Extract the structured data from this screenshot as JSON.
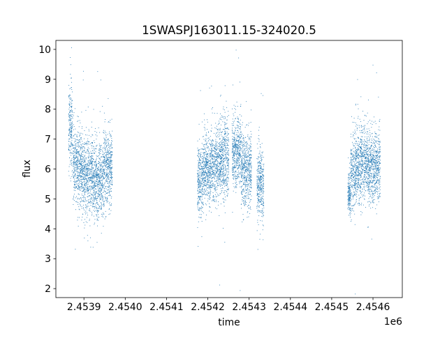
{
  "chart_data": {
    "type": "scatter",
    "title": "1SWASPJ163011.15-324020.5",
    "xlabel": "time",
    "ylabel": "flux",
    "x_offset_label": "1e6",
    "xlim": [
      2453832,
      2454671
    ],
    "ylim": [
      1.7,
      10.3
    ],
    "x_ticks": [
      2453900,
      2454000,
      2454100,
      2454200,
      2454300,
      2454400,
      2454500,
      2454600
    ],
    "x_tick_labels": [
      "2.4539",
      "2.4540",
      "2.4541",
      "2.4542",
      "2.4543",
      "2.4544",
      "2.4545",
      "2.4546"
    ],
    "y_ticks": [
      2,
      3,
      4,
      5,
      6,
      7,
      8,
      9,
      10
    ],
    "y_tick_labels": [
      "2",
      "3",
      "4",
      "5",
      "6",
      "7",
      "8",
      "9",
      "10"
    ],
    "grid": false,
    "series": [
      {
        "color": "#1f77b4",
        "marker": "point",
        "segments": [
          {
            "x_range": [
              2453862,
              2453872
            ],
            "center": 7.4,
            "spread": 0.7
          },
          {
            "x_range": [
              2453873,
              2453893
            ],
            "center": 6.1,
            "spread": 0.6
          },
          {
            "x_range": [
              2453893,
              2453920
            ],
            "center": 5.8,
            "spread": 0.65
          },
          {
            "x_range": [
              2453920,
              2453948
            ],
            "center": 5.6,
            "spread": 0.65
          },
          {
            "x_range": [
              2453948,
              2453968
            ],
            "center": 6.1,
            "spread": 0.6
          },
          {
            "x_range": [
              2454174,
              2454186
            ],
            "center": 5.6,
            "spread": 0.6
          },
          {
            "x_range": [
              2454186,
              2454206
            ],
            "center": 6.0,
            "spread": 0.55
          },
          {
            "x_range": [
              2454206,
              2454235
            ],
            "center": 6.2,
            "spread": 0.6
          },
          {
            "x_range": [
              2454235,
              2454250
            ],
            "center": 6.4,
            "spread": 0.7
          },
          {
            "x_range": [
              2454258,
              2454280
            ],
            "center": 6.6,
            "spread": 0.6
          },
          {
            "x_range": [
              2454280,
              2454305
            ],
            "center": 6.0,
            "spread": 0.6
          },
          {
            "x_range": [
              2454318,
              2454335
            ],
            "center": 5.5,
            "spread": 0.6
          },
          {
            "x_range": [
              2454538,
              2454545
            ],
            "center": 5.2,
            "spread": 0.35
          },
          {
            "x_range": [
              2454545,
              2454560
            ],
            "center": 5.9,
            "spread": 0.6
          },
          {
            "x_range": [
              2454560,
              2454585
            ],
            "center": 6.2,
            "spread": 0.65
          },
          {
            "x_range": [
              2454585,
              2454617
            ],
            "center": 6.1,
            "spread": 0.6
          }
        ]
      }
    ]
  }
}
